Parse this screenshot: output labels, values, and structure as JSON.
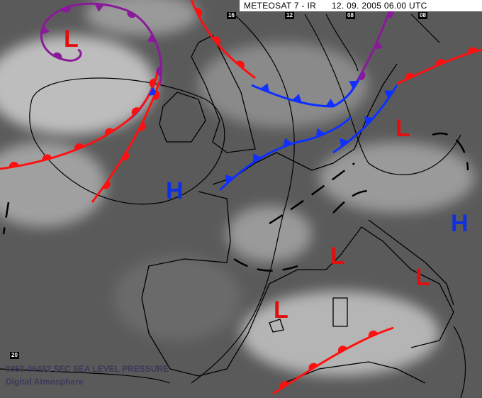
{
  "header": {
    "title": "METEOSAT 7 - IR",
    "datetime": "12. 09. 2005 06.00 UTC"
  },
  "ticks": {
    "lon1": "16",
    "lon2": "12",
    "lon3": "08",
    "lon4": "08",
    "lat1": "20"
  },
  "footer": {
    "line1": "0850-06492 SFC SEA LEVEL PRESSURE",
    "line2": "Digital Atmosphere"
  },
  "pressure_centers": [
    {
      "type": "L",
      "color": "#e01010"
    },
    {
      "type": "L",
      "color": "#e01010"
    },
    {
      "type": "L",
      "color": "#e01010"
    },
    {
      "type": "L",
      "color": "#e01010"
    },
    {
      "type": "L",
      "color": "#e01010"
    },
    {
      "type": "H",
      "color": "#1030e0"
    },
    {
      "type": "H",
      "color": "#1030e0"
    }
  ],
  "colors": {
    "cold_front": "#1030ff",
    "warm_front": "#ff1010",
    "occluded_front": "#8a1a9a",
    "isobar": "#000000"
  }
}
